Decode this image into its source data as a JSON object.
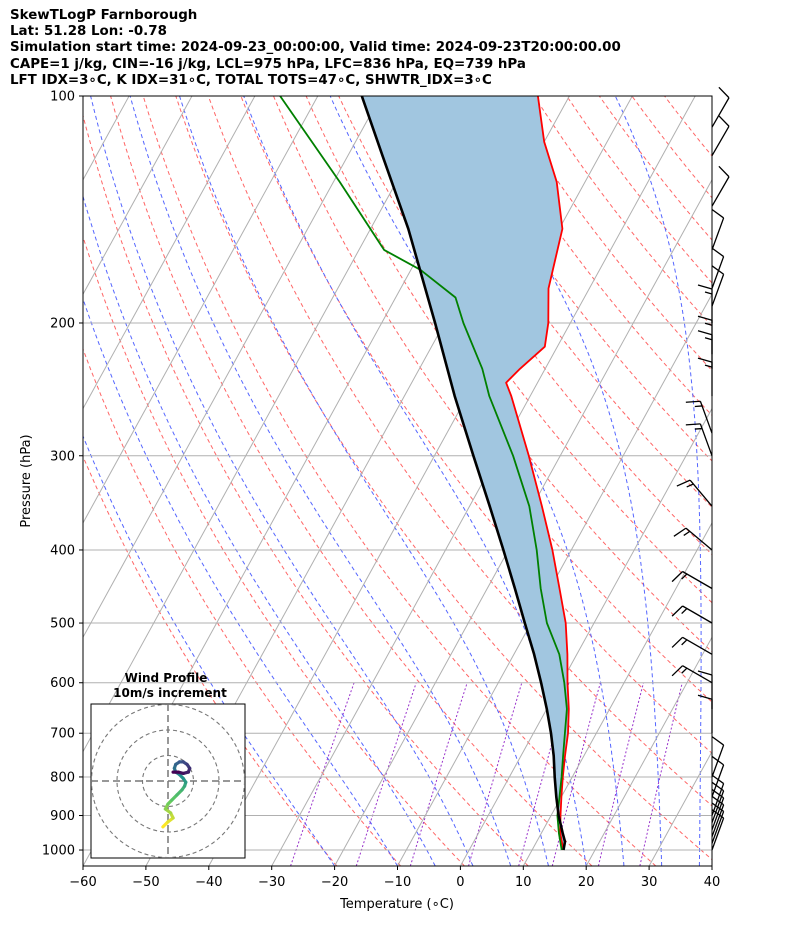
{
  "header": {
    "line1": "SkewTLogP Farnborough",
    "line2": "Lat: 51.28   Lon: -0.78",
    "line3": "Simulation start time: 2024-09-23_00:00:00, Valid time: 2024-09-23T20:00:00.00",
    "line4": "CAPE=1 j/kg, CIN=-16 j/kg, LCL=975 hPa, LFC=836 hPa, EQ=739 hPa",
    "line5": "LFT IDX=3∘C, K IDX=31∘C, TOTAL TOTS=47∘C, SHWTR_IDX=3∘C"
  },
  "chart_data": {
    "type": "line",
    "subtype": "skew-T log-P",
    "xlabel": "Temperature (∘C)",
    "ylabel": "Pressure (hPa)",
    "xlim": [
      -60,
      40
    ],
    "ylim": [
      1050,
      100
    ],
    "x_ticks": [
      -60,
      -50,
      -40,
      -30,
      -20,
      -10,
      0,
      10,
      20,
      30,
      40
    ],
    "y_ticks": [
      1000,
      900,
      800,
      700,
      600,
      500,
      400,
      300,
      200,
      100
    ],
    "y_scale": "log",
    "grid": true,
    "series": [
      {
        "role": "temperature",
        "color": "#ff0000",
        "points": [
          [
            1000,
            15.0
          ],
          [
            950,
            13.0
          ],
          [
            900,
            11.5
          ],
          [
            850,
            10.0
          ],
          [
            800,
            8.5
          ],
          [
            750,
            7.0
          ],
          [
            700,
            5.5
          ],
          [
            650,
            3.5
          ],
          [
            600,
            1.0
          ],
          [
            550,
            -1.5
          ],
          [
            500,
            -4.5
          ],
          [
            450,
            -8.5
          ],
          [
            400,
            -13.0
          ],
          [
            350,
            -18.5
          ],
          [
            300,
            -25.0
          ],
          [
            250,
            -33.0
          ],
          [
            240,
            -35.0
          ],
          [
            230,
            -34.0
          ],
          [
            215,
            -32.0
          ],
          [
            200,
            -33.5
          ],
          [
            180,
            -36.5
          ],
          [
            150,
            -39.5
          ],
          [
            130,
            -44.5
          ],
          [
            115,
            -50.0
          ],
          [
            100,
            -55.0
          ]
        ]
      },
      {
        "role": "dewpoint",
        "color": "#008000",
        "points": [
          [
            1000,
            14.7
          ],
          [
            950,
            12.8
          ],
          [
            900,
            11.0
          ],
          [
            850,
            9.7
          ],
          [
            800,
            8.3
          ],
          [
            750,
            6.7
          ],
          [
            700,
            5.0
          ],
          [
            650,
            3.2
          ],
          [
            600,
            0.5
          ],
          [
            550,
            -2.8
          ],
          [
            500,
            -7.5
          ],
          [
            450,
            -11.5
          ],
          [
            400,
            -15.5
          ],
          [
            350,
            -20.5
          ],
          [
            300,
            -27.5
          ],
          [
            250,
            -36.5
          ],
          [
            230,
            -40.0
          ],
          [
            200,
            -47.0
          ],
          [
            185,
            -50.5
          ],
          [
            170,
            -58.5
          ],
          [
            160,
            -66.0
          ],
          [
            130,
            -79.0
          ],
          [
            100,
            -96.0
          ]
        ]
      },
      {
        "role": "parcel",
        "color": "#000000",
        "points": [
          [
            1000,
            15.0
          ],
          [
            975,
            14.5
          ],
          [
            950,
            13.4
          ],
          [
            900,
            11.2
          ],
          [
            850,
            9.2
          ],
          [
            800,
            7.2
          ],
          [
            750,
            5.2
          ],
          [
            700,
            2.8
          ],
          [
            650,
            0.0
          ],
          [
            600,
            -3.2
          ],
          [
            550,
            -6.8
          ],
          [
            500,
            -11.0
          ],
          [
            450,
            -15.6
          ],
          [
            400,
            -20.8
          ],
          [
            350,
            -26.8
          ],
          [
            300,
            -33.8
          ],
          [
            250,
            -42.0
          ],
          [
            200,
            -51.5
          ],
          [
            150,
            -64.0
          ],
          [
            120,
            -74.5
          ],
          [
            100,
            -83.0
          ]
        ]
      }
    ],
    "shading": {
      "between": [
        "temperature",
        "parcel"
      ],
      "color": "#a1c6e0"
    },
    "wind_barbs": [
      [
        1000,
        20,
        10
      ],
      [
        980,
        20,
        10
      ],
      [
        960,
        20,
        10
      ],
      [
        940,
        20,
        10
      ],
      [
        920,
        20,
        10
      ],
      [
        900,
        20,
        10
      ],
      [
        850,
        20,
        10
      ],
      [
        800,
        20,
        10
      ],
      [
        700,
        0,
        10
      ],
      [
        650,
        0,
        10
      ],
      [
        600,
        300,
        15
      ],
      [
        550,
        300,
        15
      ],
      [
        500,
        300,
        15
      ],
      [
        450,
        300,
        15
      ],
      [
        400,
        310,
        15
      ],
      [
        350,
        320,
        15
      ],
      [
        300,
        340,
        15
      ],
      [
        280,
        340,
        15
      ],
      [
        250,
        0,
        15
      ],
      [
        230,
        0,
        15
      ],
      [
        220,
        0,
        15
      ],
      [
        200,
        0,
        15
      ],
      [
        190,
        20,
        10
      ],
      [
        180,
        20,
        10
      ],
      [
        160,
        20,
        10
      ],
      [
        140,
        30,
        10
      ],
      [
        120,
        30,
        10
      ],
      [
        110,
        30,
        10
      ]
    ],
    "hodograph": {
      "title": "Wind Profile",
      "subtitle": "10m/s increment",
      "rings": [
        10,
        20,
        30
      ],
      "points": [
        [
          -2.0,
          -18.0
        ],
        [
          0.0,
          -16.0
        ],
        [
          2.0,
          -14.5
        ],
        [
          1.0,
          -12.5
        ],
        [
          -1.0,
          -11.0
        ],
        [
          0.0,
          -9.0
        ],
        [
          1.5,
          -7.5
        ],
        [
          3.5,
          -5.5
        ],
        [
          5.5,
          -3.5
        ],
        [
          6.5,
          -2.0
        ],
        [
          7.0,
          -0.5
        ],
        [
          6.0,
          1.0
        ],
        [
          4.5,
          2.5
        ],
        [
          3.0,
          3.5
        ],
        [
          2.5,
          5.0
        ],
        [
          3.0,
          6.5
        ],
        [
          4.5,
          7.5
        ],
        [
          6.0,
          7.5
        ],
        [
          7.5,
          6.5
        ],
        [
          8.5,
          5.0
        ],
        [
          8.0,
          3.5
        ],
        [
          6.0,
          3.0
        ],
        [
          4.0,
          3.5
        ],
        [
          2.0,
          3.5
        ]
      ]
    }
  }
}
